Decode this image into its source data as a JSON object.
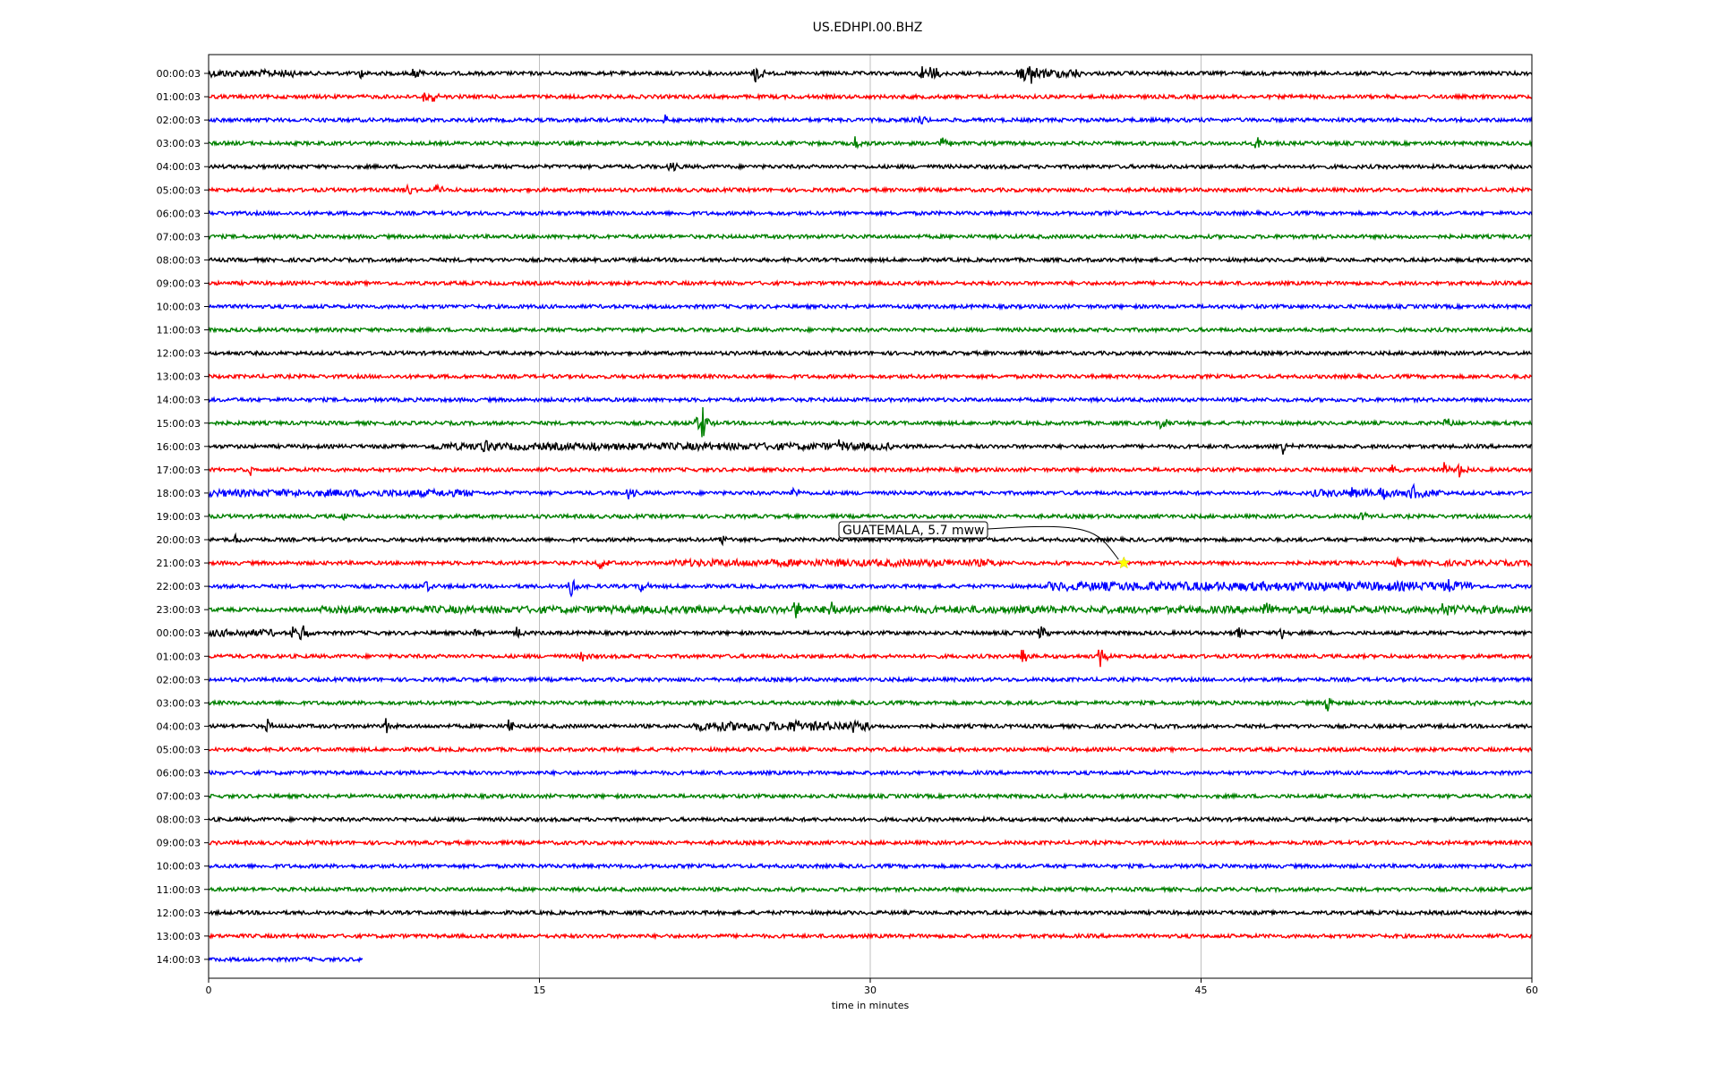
{
  "chart_data": {
    "type": "line",
    "title": "US.EDHPI.00.BHZ",
    "xlabel": "time in minutes",
    "ylabel": "",
    "xlim": [
      0,
      60
    ],
    "xticks": [
      0,
      15,
      30,
      45,
      60
    ],
    "grid": "vertical",
    "trace_colors": [
      "#000000",
      "#ff0000",
      "#0000ff",
      "#008000"
    ],
    "rows": [
      "00:00:03",
      "01:00:03",
      "02:00:03",
      "03:00:03",
      "04:00:03",
      "05:00:03",
      "06:00:03",
      "07:00:03",
      "08:00:03",
      "09:00:03",
      "10:00:03",
      "11:00:03",
      "12:00:03",
      "13:00:03",
      "14:00:03",
      "15:00:03",
      "16:00:03",
      "17:00:03",
      "18:00:03",
      "19:00:03",
      "20:00:03",
      "21:00:03",
      "22:00:03",
      "23:00:03",
      "00:00:03",
      "01:00:03",
      "02:00:03",
      "03:00:03",
      "04:00:03",
      "05:00:03",
      "06:00:03",
      "07:00:03",
      "08:00:03",
      "09:00:03",
      "10:00:03",
      "11:00:03",
      "12:00:03",
      "13:00:03",
      "14:00:03"
    ],
    "last_row_end_minute": 7,
    "events": [
      {
        "row": 0,
        "minute": 24.8,
        "amp": 16
      },
      {
        "row": 0,
        "minute": 32.3,
        "amp": 12
      },
      {
        "row": 0,
        "minute": 32.8,
        "amp": 12
      },
      {
        "row": 0,
        "minute": 36.9,
        "amp": 18
      },
      {
        "row": 0,
        "minute": 37.3,
        "amp": 12
      },
      {
        "row": 0,
        "minute": 9.3,
        "amp": 10
      },
      {
        "row": 0,
        "minute": 6.8,
        "amp": 10
      },
      {
        "row": 1,
        "minute": 10.2,
        "amp": 12
      },
      {
        "row": 1,
        "minute": 9.7,
        "amp": 8
      },
      {
        "row": 2,
        "minute": 20.7,
        "amp": 9
      },
      {
        "row": 2,
        "minute": 32.2,
        "amp": 8
      },
      {
        "row": 3,
        "minute": 29.3,
        "amp": 10
      },
      {
        "row": 3,
        "minute": 33.2,
        "amp": 12
      },
      {
        "row": 3,
        "minute": 47.5,
        "amp": 10
      },
      {
        "row": 4,
        "minute": 20.9,
        "amp": 8
      },
      {
        "row": 5,
        "minute": 8.9,
        "amp": 10
      },
      {
        "row": 5,
        "minute": 10.2,
        "amp": 14
      },
      {
        "row": 15,
        "minute": 22.4,
        "amp": 28
      },
      {
        "row": 15,
        "minute": 22.1,
        "amp": 10
      },
      {
        "row": 15,
        "minute": 43.2,
        "amp": 10
      },
      {
        "row": 15,
        "minute": 56.0,
        "amp": 10
      },
      {
        "row": 16,
        "minute": 12.5,
        "amp": 9
      },
      {
        "row": 16,
        "minute": 17.5,
        "amp": 8
      },
      {
        "row": 16,
        "minute": 28.5,
        "amp": 8
      },
      {
        "row": 16,
        "minute": 48.7,
        "amp": 8
      },
      {
        "row": 17,
        "minute": 1.8,
        "amp": 8
      },
      {
        "row": 17,
        "minute": 53.6,
        "amp": 9
      },
      {
        "row": 17,
        "minute": 56.7,
        "amp": 10
      },
      {
        "row": 17,
        "minute": 56.0,
        "amp": 9
      },
      {
        "row": 18,
        "minute": 51.7,
        "amp": 11
      },
      {
        "row": 18,
        "minute": 53.2,
        "amp": 9
      },
      {
        "row": 18,
        "minute": 54.6,
        "amp": 12
      },
      {
        "row": 18,
        "minute": 19.0,
        "amp": 9
      },
      {
        "row": 18,
        "minute": 26.5,
        "amp": 8
      },
      {
        "row": 19,
        "minute": 52.2,
        "amp": 9
      },
      {
        "row": 19,
        "minute": 6.1,
        "amp": 6
      },
      {
        "row": 20,
        "minute": 1.2,
        "amp": 9
      },
      {
        "row": 20,
        "minute": 23.3,
        "amp": 7
      },
      {
        "row": 21,
        "minute": 17.7,
        "amp": 12
      },
      {
        "row": 21,
        "minute": 53.8,
        "amp": 7
      },
      {
        "row": 22,
        "minute": 9.8,
        "amp": 10
      },
      {
        "row": 22,
        "minute": 16.4,
        "amp": 14
      },
      {
        "row": 22,
        "minute": 19.6,
        "amp": 9
      },
      {
        "row": 22,
        "minute": 56.2,
        "amp": 9
      },
      {
        "row": 23,
        "minute": 26.6,
        "amp": 14
      },
      {
        "row": 23,
        "minute": 28.2,
        "amp": 10
      },
      {
        "row": 23,
        "minute": 39.3,
        "amp": 12
      },
      {
        "row": 23,
        "minute": 47.8,
        "amp": 11
      },
      {
        "row": 23,
        "minute": 56.0,
        "amp": 14
      },
      {
        "row": 23,
        "minute": 56.6,
        "amp": 9
      },
      {
        "row": 24,
        "minute": 4.2,
        "amp": 14
      },
      {
        "row": 24,
        "minute": 3.8,
        "amp": 9
      },
      {
        "row": 24,
        "minute": 13.9,
        "amp": 12
      },
      {
        "row": 24,
        "minute": 37.7,
        "amp": 10
      },
      {
        "row": 24,
        "minute": 46.6,
        "amp": 12
      },
      {
        "row": 24,
        "minute": 48.6,
        "amp": 12
      },
      {
        "row": 24,
        "minute": 12.1,
        "amp": 9
      },
      {
        "row": 25,
        "minute": 16.9,
        "amp": 10
      },
      {
        "row": 25,
        "minute": 36.9,
        "amp": 15
      },
      {
        "row": 25,
        "minute": 40.4,
        "amp": 16
      },
      {
        "row": 27,
        "minute": 12.2,
        "amp": 10
      },
      {
        "row": 27,
        "minute": 50.7,
        "amp": 14
      },
      {
        "row": 27,
        "minute": 57.2,
        "amp": 10
      },
      {
        "row": 28,
        "minute": 2.6,
        "amp": 10
      },
      {
        "row": 28,
        "minute": 8.0,
        "amp": 10
      },
      {
        "row": 28,
        "minute": 13.6,
        "amp": 16
      },
      {
        "row": 28,
        "minute": 26.6,
        "amp": 11
      },
      {
        "row": 28,
        "minute": 29.2,
        "amp": 12
      }
    ],
    "noisy_segments": [
      {
        "row": 0,
        "from": 0,
        "to": 4,
        "amp": 4
      },
      {
        "row": 0,
        "from": 36.5,
        "to": 39.5,
        "amp": 5
      },
      {
        "row": 16,
        "from": 10,
        "to": 31,
        "amp": 4
      },
      {
        "row": 18,
        "from": 0,
        "to": 12,
        "amp": 4
      },
      {
        "row": 18,
        "from": 50,
        "to": 56,
        "amp": 4
      },
      {
        "row": 21,
        "from": 21,
        "to": 36,
        "amp": 4
      },
      {
        "row": 21,
        "from": 55,
        "to": 60,
        "amp": 3
      },
      {
        "row": 22,
        "from": 38,
        "to": 57.5,
        "amp": 5
      },
      {
        "row": 23,
        "from": 5,
        "to": 60,
        "amp": 4
      },
      {
        "row": 24,
        "from": 0,
        "to": 3,
        "amp": 4
      },
      {
        "row": 28,
        "from": 22,
        "to": 30,
        "amp": 5
      }
    ],
    "annotation": {
      "text": "GUATEMALA, 5.7 mww",
      "row": 21,
      "minute": 41.5,
      "marker_color": "#ffff00"
    }
  }
}
